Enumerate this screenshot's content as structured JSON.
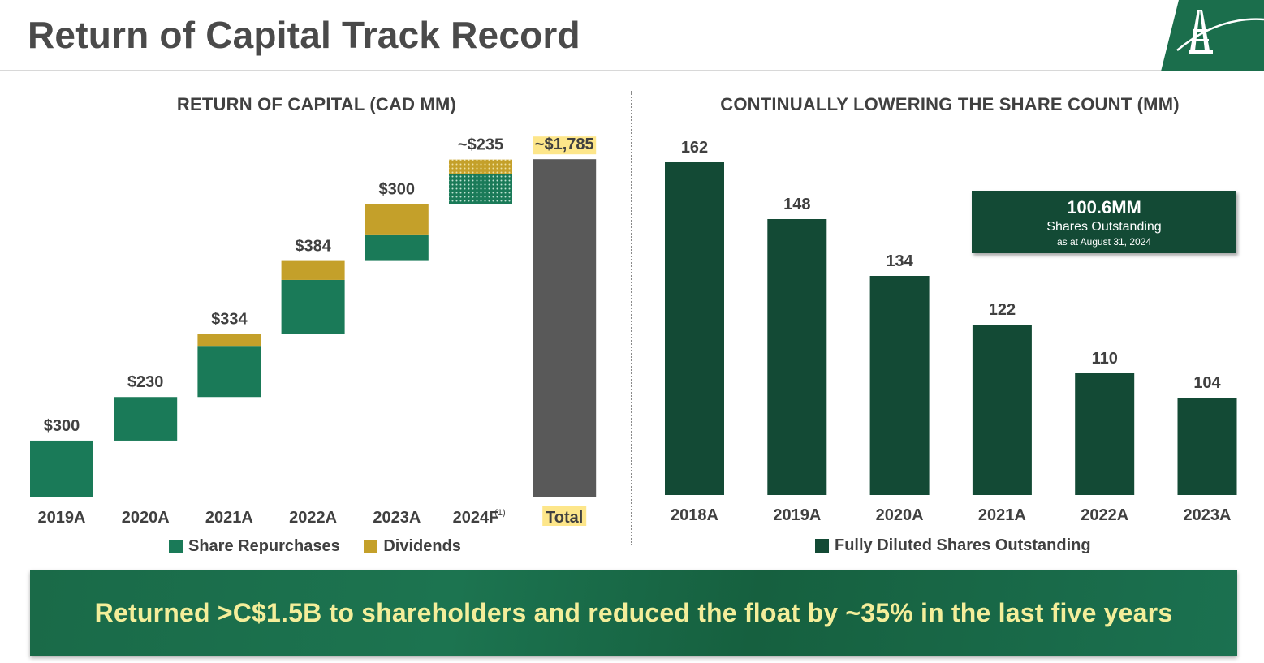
{
  "header": {
    "title": "Return of Capital Track Record"
  },
  "chart_data": [
    {
      "type": "bar",
      "subtype": "stacked-waterfall",
      "title": "RETURN OF CAPITAL (CAD MM)",
      "categories": [
        "2019A",
        "2020A",
        "2021A",
        "2022A",
        "2023A",
        "2024F",
        "Total"
      ],
      "category_footnotes": [
        "",
        "",
        "",
        "",
        "",
        "(1)",
        ""
      ],
      "series": [
        {
          "name": "Share Repurchases",
          "values": [
            300,
            230,
            270,
            284,
            140,
            160,
            null
          ],
          "color": "#1a7a58"
        },
        {
          "name": "Dividends",
          "values": [
            0,
            0,
            64,
            100,
            160,
            75,
            null
          ],
          "color": "#c4a02a"
        },
        {
          "name": "Total",
          "values": [
            null,
            null,
            null,
            null,
            null,
            null,
            1785
          ],
          "color": "#595959"
        }
      ],
      "bar_labels": [
        "$300",
        "$230",
        "$334",
        "$384",
        "$300",
        "~$235",
        "~$1,785"
      ],
      "forecast_categories": [
        "2024F"
      ],
      "legend": [
        "Share Repurchases",
        "Dividends"
      ],
      "legend_position": "bottom",
      "xlabel": "",
      "ylabel": "",
      "ylim": [
        0,
        1785
      ]
    },
    {
      "type": "bar",
      "title": "CONTINUALLY LOWERING THE SHARE COUNT (MM)",
      "categories": [
        "2018A",
        "2019A",
        "2020A",
        "2021A",
        "2022A",
        "2023A"
      ],
      "series": [
        {
          "name": "Fully Diluted Shares Outstanding",
          "values": [
            162,
            148,
            134,
            122,
            110,
            104
          ],
          "color": "#134a35"
        }
      ],
      "data_labels": [
        "162",
        "148",
        "134",
        "122",
        "110",
        "104"
      ],
      "legend": [
        "Fully Diluted Shares Outstanding"
      ],
      "legend_position": "bottom",
      "xlabel": "",
      "ylabel": "",
      "ylim": [
        80,
        162
      ]
    }
  ],
  "callout": {
    "value": "100.6MM",
    "label": "Shares Outstanding",
    "date": "as at August 31, 2024"
  },
  "banner": {
    "text": "Returned >C$1.5B to shareholders and reduced the float by ~35% in the last five years"
  },
  "colors": {
    "accent_dark": "#134a35",
    "accent": "#1a7a58",
    "dividend": "#c4a02a",
    "total": "#595959",
    "highlight": "#fde68a",
    "banner_text": "#f4ee9a"
  }
}
